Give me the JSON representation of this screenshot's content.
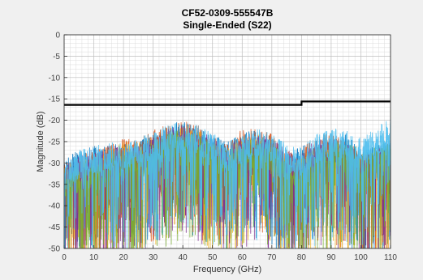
{
  "chart_data": {
    "type": "line",
    "title": "CF52-0309-555547B",
    "subtitle": "Single-Ended (S22)",
    "xlabel": "Frequency (GHz)",
    "ylabel": "Magnitude (dB)",
    "xlim": [
      0,
      110
    ],
    "ylim": [
      -50,
      0
    ],
    "xticks": [
      "0",
      "10",
      "20",
      "30",
      "40",
      "50",
      "60",
      "70",
      "80",
      "90",
      "100",
      "110"
    ],
    "yticks": [
      "0",
      "-5",
      "-10",
      "-15",
      "-20",
      "-25",
      "-30",
      "-35",
      "-40",
      "-45",
      "-50"
    ],
    "grid": true,
    "limit_line": {
      "color": "#000000",
      "x": [
        0,
        80,
        80,
        110
      ],
      "y": [
        -16.4,
        -16.4,
        -15.6,
        -15.6
      ]
    },
    "series": [
      {
        "color": "#0072bd",
        "x": [
          0,
          5,
          10,
          15,
          20,
          25,
          30,
          35,
          40,
          45,
          50,
          55,
          60,
          65,
          70,
          75,
          80,
          85,
          90,
          95,
          100,
          105,
          110
        ],
        "y": [
          -29,
          -27,
          -26,
          -25,
          -25,
          -25,
          -23,
          -21,
          -20,
          -21,
          -23,
          -25,
          -23,
          -22,
          -24,
          -28,
          -26,
          -24,
          -24,
          -23,
          -27,
          -26,
          -24
        ]
      },
      {
        "color": "#d95319",
        "x": [
          0,
          5,
          10,
          15,
          20,
          25,
          30,
          35,
          40,
          45,
          50,
          55,
          60,
          65,
          70,
          75,
          80,
          85,
          90,
          95,
          100,
          105,
          110
        ],
        "y": [
          -30,
          -28,
          -27,
          -26,
          -24,
          -24,
          -22,
          -21,
          -20,
          -21,
          -24,
          -25,
          -22,
          -22,
          -23,
          -27,
          -27,
          -23,
          -23,
          -24,
          -28,
          -27,
          -25
        ]
      },
      {
        "color": "#edb120",
        "x": [
          0,
          5,
          10,
          15,
          20,
          25,
          30,
          35,
          40,
          45,
          50,
          55,
          60,
          65,
          70,
          75,
          80,
          85,
          90,
          95,
          100,
          105,
          110
        ],
        "y": [
          -31,
          -29,
          -28,
          -27,
          -25,
          -25,
          -24,
          -23,
          -21,
          -22,
          -25,
          -26,
          -24,
          -23,
          -25,
          -29,
          -29,
          -25,
          -25,
          -26,
          -29,
          -28,
          -26
        ]
      },
      {
        "color": "#7e2f8e",
        "x": [
          0,
          5,
          10,
          15,
          20,
          25,
          30,
          35,
          40,
          45,
          50,
          55,
          60,
          65,
          70,
          75,
          80,
          85,
          90,
          95,
          100,
          105,
          110
        ],
        "y": [
          -30,
          -28,
          -27,
          -26,
          -26,
          -26,
          -24,
          -22,
          -21,
          -22,
          -24,
          -26,
          -24,
          -23,
          -24,
          -27,
          -28,
          -24,
          -24,
          -25,
          -28,
          -27,
          -25
        ]
      },
      {
        "color": "#77ac30",
        "x": [
          0,
          5,
          10,
          15,
          20,
          25,
          30,
          35,
          40,
          45,
          50,
          55,
          60,
          65,
          70,
          75,
          80,
          85,
          90,
          95,
          100,
          105,
          110
        ],
        "y": [
          -32,
          -30,
          -29,
          -28,
          -27,
          -27,
          -25,
          -23,
          -22,
          -23,
          -25,
          -27,
          -25,
          -24,
          -25,
          -28,
          -29,
          -26,
          -25,
          -24,
          -27,
          -26,
          -24
        ]
      },
      {
        "color": "#4dbeee",
        "x": [
          0,
          5,
          10,
          15,
          20,
          25,
          30,
          35,
          40,
          45,
          50,
          55,
          60,
          65,
          70,
          75,
          80,
          85,
          90,
          95,
          100,
          105,
          110
        ],
        "y": [
          -29,
          -27,
          -26,
          -25,
          -25,
          -24,
          -23,
          -21,
          -20,
          -21,
          -23,
          -25,
          -23,
          -22,
          -23,
          -25,
          -26,
          -23,
          -22,
          -22,
          -24,
          -22,
          -19
        ]
      }
    ]
  }
}
